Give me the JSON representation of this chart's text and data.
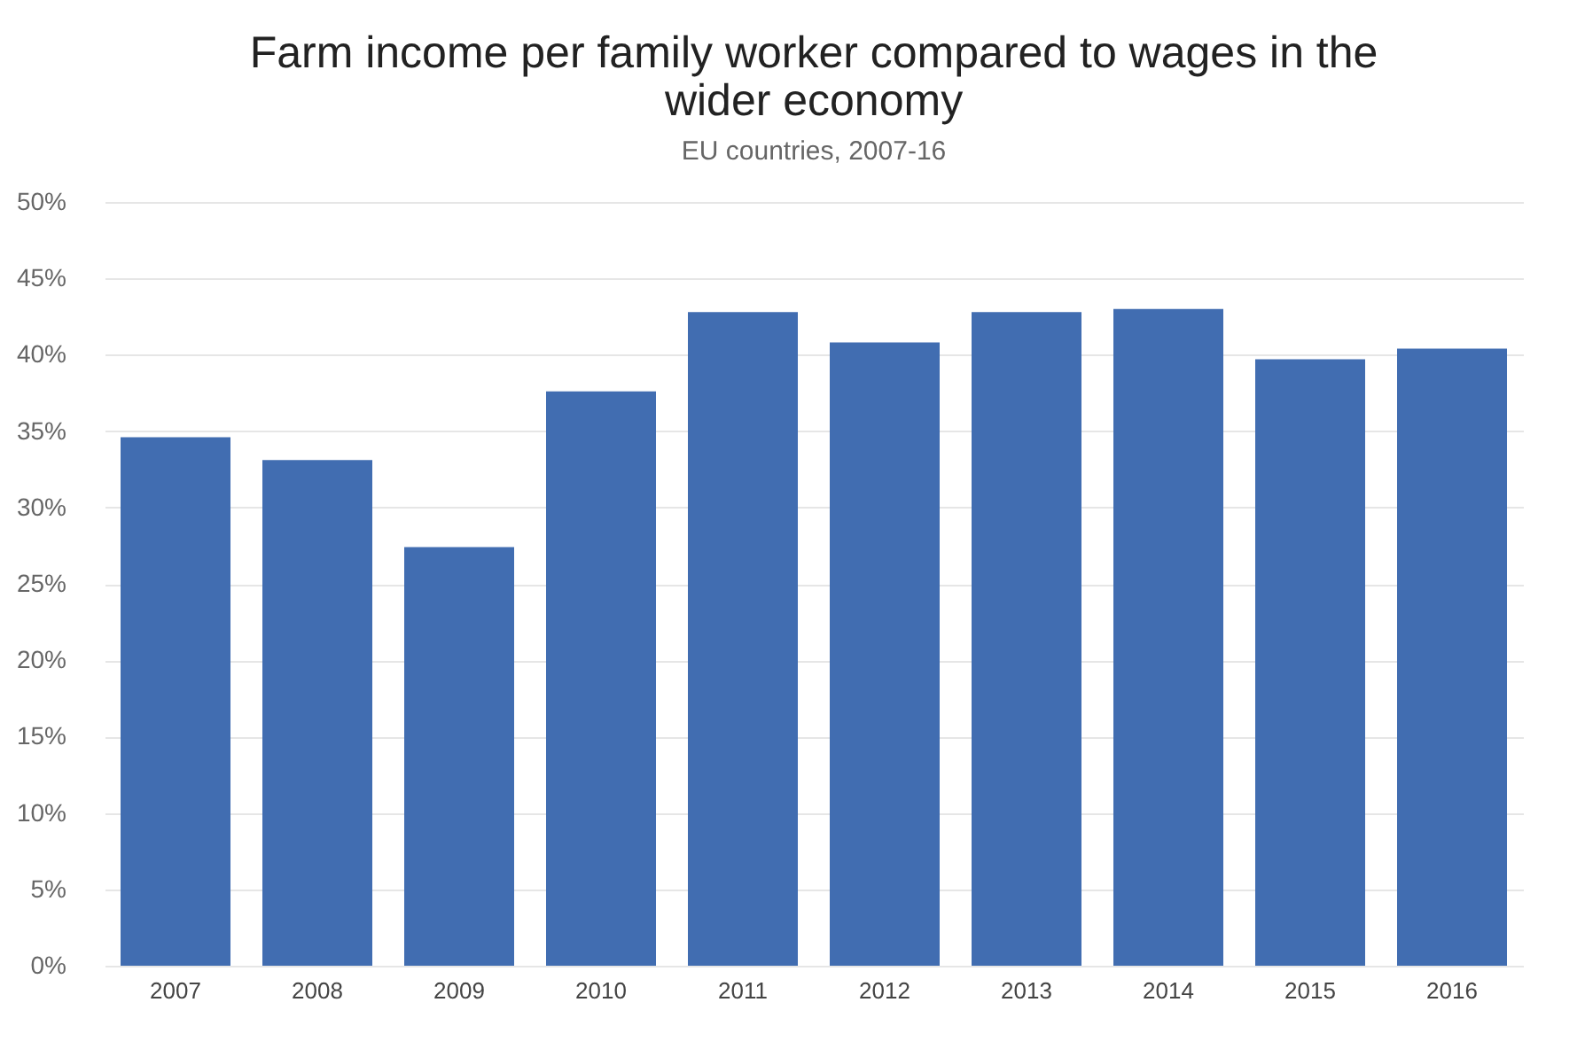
{
  "chart_data": {
    "type": "bar",
    "title": "Farm income per family worker compared to wages in the wider economy",
    "subtitle": "EU countries, 2007-16",
    "categories": [
      "2007",
      "2008",
      "2009",
      "2010",
      "2011",
      "2012",
      "2013",
      "2014",
      "2015",
      "2016"
    ],
    "values": [
      34.6,
      33.1,
      27.4,
      37.6,
      42.8,
      40.8,
      42.8,
      43.0,
      39.7,
      40.4
    ],
    "color": "#416db1",
    "ylim": [
      0,
      50
    ],
    "yticks": [
      {
        "value": 0,
        "label": "0%"
      },
      {
        "value": 5,
        "label": "5%"
      },
      {
        "value": 10,
        "label": "10%"
      },
      {
        "value": 15,
        "label": "15%"
      },
      {
        "value": 20,
        "label": "20%"
      },
      {
        "value": 25,
        "label": "25%"
      },
      {
        "value": 30,
        "label": "30%"
      },
      {
        "value": 35,
        "label": "35%"
      },
      {
        "value": 40,
        "label": "40%"
      },
      {
        "value": 45,
        "label": "45%"
      },
      {
        "value": 50,
        "label": "50%"
      }
    ],
    "grid": "y"
  }
}
